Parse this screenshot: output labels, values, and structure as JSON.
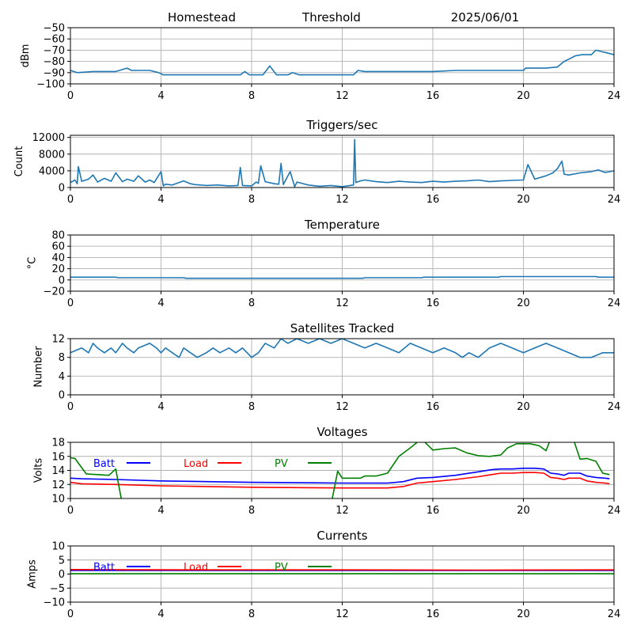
{
  "header": {
    "station": "Homestead",
    "mode": "Threshold",
    "date": "2025/06/01"
  },
  "colors": {
    "series": "#1f77b4",
    "batt": "#0000ff",
    "load": "#ff0000",
    "pv": "#008000",
    "grid": "#b0b0b0"
  },
  "chart_data": [
    {
      "type": "line",
      "title": "",
      "xlabel": "",
      "ylabel": "dBm",
      "xlim": [
        0,
        24
      ],
      "ylim": [
        -100,
        -50
      ],
      "xticks": [
        0,
        4,
        8,
        12,
        16,
        20,
        24
      ],
      "yticks": [
        -100,
        -90,
        -80,
        -70,
        -60,
        -50
      ],
      "grid": true,
      "series": [
        {
          "color": "#1f77b4",
          "x": [
            0,
            0.3,
            1,
            2,
            2.5,
            2.7,
            3.5,
            3.9,
            4.1,
            5,
            6,
            7,
            7.5,
            7.7,
            7.9,
            8.5,
            8.8,
            9.1,
            9.2,
            9.6,
            9.8,
            10.1,
            11,
            12,
            12.5,
            12.7,
            13,
            14,
            15,
            16,
            17,
            18,
            19,
            20,
            20.1,
            21,
            21.5,
            21.8,
            22,
            22.3,
            22.6,
            23,
            23.2,
            23.6,
            24
          ],
          "y": [
            -88,
            -90,
            -89,
            -89,
            -86,
            -88,
            -88,
            -90,
            -92,
            -92,
            -92,
            -92,
            -92,
            -89,
            -92,
            -92,
            -84,
            -92,
            -92,
            -92,
            -90,
            -92,
            -92,
            -92,
            -92,
            -88,
            -89,
            -89,
            -89,
            -89,
            -88,
            -88,
            -88,
            -88,
            -86,
            -86,
            -85,
            -80,
            -78,
            -75,
            -74,
            -74,
            -70,
            -72,
            -74
          ]
        }
      ]
    },
    {
      "type": "line",
      "title": "Triggers/sec",
      "xlabel": "",
      "ylabel": "Count",
      "xlim": [
        0,
        24
      ],
      "ylim": [
        0,
        12500
      ],
      "xticks": [
        0,
        4,
        8,
        12,
        16,
        20,
        24
      ],
      "yticks": [
        0,
        4000,
        8000,
        12000
      ],
      "grid": true,
      "series": [
        {
          "color": "#1f77b4",
          "x": [
            0,
            0.2,
            0.3,
            0.35,
            0.5,
            0.8,
            1.0,
            1.2,
            1.5,
            1.8,
            2.0,
            2.3,
            2.5,
            2.8,
            3.0,
            3.3,
            3.5,
            3.7,
            4.0,
            4.1,
            4.2,
            4.5,
            5.0,
            5.3,
            5.5,
            6.0,
            6.5,
            7.0,
            7.4,
            7.5,
            7.6,
            8.0,
            8.2,
            8.3,
            8.4,
            8.6,
            9.0,
            9.2,
            9.3,
            9.4,
            9.7,
            9.9,
            10.0,
            10.5,
            11.0,
            11.5,
            12.0,
            12.5,
            12.55,
            12.6,
            12.8,
            13.0,
            13.5,
            14.0,
            14.5,
            15.0,
            15.5,
            16.0,
            16.5,
            17.0,
            17.5,
            18.0,
            18.5,
            19.0,
            19.5,
            20.0,
            20.2,
            20.5,
            21.0,
            21.3,
            21.5,
            21.7,
            21.8,
            22.0,
            22.5,
            23.0,
            23.3,
            23.6,
            24.0
          ],
          "y": [
            1200,
            1800,
            900,
            5000,
            1500,
            2000,
            3000,
            1300,
            2200,
            1500,
            3500,
            1400,
            2000,
            1500,
            2800,
            1300,
            1800,
            1200,
            3800,
            400,
            800,
            600,
            1600,
            900,
            700,
            500,
            600,
            400,
            500,
            4800,
            500,
            400,
            1300,
            1000,
            5200,
            1400,
            900,
            800,
            5800,
            700,
            3800,
            200,
            1300,
            600,
            300,
            500,
            200,
            600,
            11500,
            1200,
            1600,
            1800,
            1400,
            1200,
            1500,
            1300,
            1200,
            1500,
            1300,
            1500,
            1600,
            1800,
            1400,
            1600,
            1700,
            1800,
            5500,
            2000,
            2800,
            3500,
            4500,
            6300,
            3200,
            3000,
            3500,
            3800,
            4200,
            3600,
            4000
          ]
        }
      ]
    },
    {
      "type": "line",
      "title": "Temperature",
      "xlabel": "",
      "ylabel": "°C",
      "xlim": [
        0,
        24
      ],
      "ylim": [
        -20,
        80
      ],
      "xticks": [
        0,
        4,
        8,
        12,
        16,
        20,
        24
      ],
      "yticks": [
        -20,
        0,
        20,
        40,
        60,
        80
      ],
      "grid": true,
      "series": [
        {
          "color": "#1f77b4",
          "x": [
            0,
            2,
            2.1,
            5,
            5.1,
            6,
            8,
            12,
            12.9,
            13,
            15.5,
            15.6,
            18.9,
            19,
            23.2,
            23.3,
            24
          ],
          "y": [
            5,
            5,
            4,
            4,
            3,
            3,
            3,
            3,
            3,
            4,
            4,
            5,
            5,
            6,
            6,
            5,
            5
          ]
        }
      ]
    },
    {
      "type": "line",
      "title": "Satellites Tracked",
      "xlabel": "",
      "ylabel": "Number",
      "xlim": [
        0,
        24
      ],
      "ylim": [
        0,
        12
      ],
      "xticks": [
        0,
        4,
        8,
        12,
        16,
        20,
        24
      ],
      "yticks": [
        0,
        4,
        8,
        12
      ],
      "grid": true,
      "series": [
        {
          "color": "#1f77b4",
          "x": [
            0,
            0.5,
            0.8,
            1.0,
            1.2,
            1.5,
            1.8,
            2.0,
            2.3,
            2.5,
            2.8,
            3.0,
            3.5,
            3.8,
            4.0,
            4.2,
            4.5,
            4.8,
            5.0,
            5.3,
            5.6,
            6.0,
            6.3,
            6.6,
            7.0,
            7.3,
            7.6,
            8.0,
            8.3,
            8.6,
            9.0,
            9.3,
            9.6,
            10.0,
            10.5,
            11.0,
            11.5,
            12.0,
            12.5,
            13.0,
            13.5,
            14.0,
            14.5,
            15.0,
            15.5,
            16.0,
            16.5,
            17.0,
            17.3,
            17.6,
            18.0,
            18.5,
            19.0,
            19.5,
            20.0,
            20.5,
            21.0,
            21.5,
            22.0,
            22.5,
            23.0,
            23.5,
            24.0
          ],
          "y": [
            9,
            10,
            9,
            11,
            10,
            9,
            10,
            9,
            11,
            10,
            9,
            10,
            11,
            10,
            9,
            10,
            9,
            8,
            10,
            9,
            8,
            9,
            10,
            9,
            10,
            9,
            10,
            8,
            9,
            11,
            10,
            12,
            11,
            12,
            11,
            12,
            11,
            12,
            11,
            10,
            11,
            10,
            9,
            11,
            10,
            9,
            10,
            9,
            8,
            9,
            8,
            10,
            11,
            10,
            9,
            10,
            11,
            10,
            9,
            8,
            8,
            9,
            9
          ]
        }
      ]
    },
    {
      "type": "line",
      "title": "Voltages",
      "xlabel": "",
      "ylabel": "Volts",
      "xlim": [
        0,
        24
      ],
      "ylim": [
        10,
        18
      ],
      "xticks": [
        0,
        4,
        8,
        12,
        16,
        20,
        24
      ],
      "yticks": [
        10,
        12,
        14,
        16,
        18
      ],
      "grid": true,
      "legend": "top-left",
      "series": [
        {
          "name": "Batt",
          "color": "#0000ff",
          "x": [
            0,
            0.5,
            2,
            4,
            8,
            12,
            14,
            14.7,
            15.3,
            16,
            17,
            18,
            18.6,
            19,
            19.5,
            20,
            20.5,
            20.9,
            21.2,
            21.5,
            21.8,
            22.0,
            22.5,
            22.8,
            23.2,
            23.6,
            23.8
          ],
          "y": [
            12.9,
            12.8,
            12.7,
            12.5,
            12.3,
            12.2,
            12.2,
            12.4,
            12.9,
            13.0,
            13.3,
            13.8,
            14.1,
            14.2,
            14.2,
            14.3,
            14.3,
            14.2,
            13.6,
            13.5,
            13.3,
            13.6,
            13.6,
            13.2,
            13.0,
            12.9,
            12.8
          ]
        },
        {
          "name": "Load",
          "color": "#ff0000",
          "x": [
            0,
            0.5,
            2,
            4,
            8,
            12,
            14,
            14.7,
            15.3,
            16,
            17,
            18,
            18.6,
            19,
            19.5,
            20,
            20.5,
            20.9,
            21.2,
            21.5,
            21.8,
            22.0,
            22.5,
            22.8,
            23.2,
            23.6,
            23.8
          ],
          "y": [
            12.3,
            12.1,
            12.0,
            11.8,
            11.6,
            11.5,
            11.5,
            11.7,
            12.2,
            12.4,
            12.7,
            13.1,
            13.4,
            13.6,
            13.6,
            13.7,
            13.7,
            13.6,
            13.0,
            12.9,
            12.7,
            12.9,
            12.9,
            12.5,
            12.3,
            12.2,
            12.1
          ]
        },
        {
          "name": "PV",
          "color": "#008000",
          "x": [
            0,
            0.2,
            0.7,
            1.2,
            1.7,
            2.0,
            2.3,
            11.5,
            11.8,
            12.0,
            12.3,
            12.8,
            13.0,
            13.5,
            14.0,
            14.5,
            15.0,
            15.5,
            16.0,
            16.5,
            17.0,
            17.5,
            18.0,
            18.5,
            19.0,
            19.3,
            19.7,
            20.0,
            20.3,
            20.7,
            21.0,
            21.2,
            22.2,
            22.5,
            22.8,
            23.2,
            23.5,
            23.8
          ],
          "y": [
            15.8,
            15.7,
            13.5,
            13.4,
            13.3,
            14.2,
            9.0,
            9.0,
            13.9,
            12.9,
            12.9,
            12.9,
            13.2,
            13.2,
            13.6,
            16.0,
            17.2,
            18.5,
            16.9,
            17.1,
            17.2,
            16.5,
            16.1,
            16.0,
            16.2,
            17.2,
            17.8,
            17.8,
            17.8,
            17.5,
            16.8,
            18.5,
            18.5,
            15.6,
            15.7,
            15.3,
            13.6,
            13.4
          ]
        }
      ]
    },
    {
      "type": "line",
      "title": "Currents",
      "xlabel": "",
      "ylabel": "Amps",
      "xlim": [
        0,
        24
      ],
      "ylim": [
        -10,
        10
      ],
      "xticks": [
        0,
        4,
        8,
        12,
        16,
        20,
        24
      ],
      "yticks": [
        -10,
        -5,
        0,
        5,
        10
      ],
      "grid": true,
      "legend": "top-left",
      "series": [
        {
          "name": "Batt",
          "color": "#0000ff",
          "x": [
            0,
            24
          ],
          "y": [
            1.3,
            1.3
          ]
        },
        {
          "name": "Load",
          "color": "#ff0000",
          "x": [
            0,
            6,
            12,
            18,
            24
          ],
          "y": [
            1.6,
            1.5,
            1.5,
            1.4,
            1.5
          ]
        },
        {
          "name": "PV",
          "color": "#008000",
          "x": [
            0,
            24
          ],
          "y": [
            0.1,
            0.1
          ]
        }
      ]
    }
  ]
}
